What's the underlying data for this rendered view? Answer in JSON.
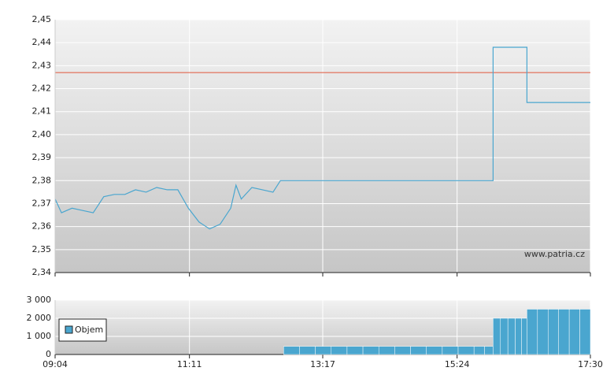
{
  "chart_data": [
    {
      "type": "line",
      "x": [
        "09:04",
        "09:10",
        "09:20",
        "09:30",
        "09:40",
        "09:50",
        "10:00",
        "10:10",
        "10:20",
        "10:30",
        "10:40",
        "10:50",
        "11:00",
        "11:10",
        "11:20",
        "11:30",
        "11:40",
        "11:50",
        "11:55",
        "12:00",
        "12:10",
        "12:20",
        "12:30",
        "12:37",
        "15:58",
        "15:58",
        "16:30",
        "16:30",
        "17:30"
      ],
      "values": [
        2.372,
        2.366,
        2.368,
        2.367,
        2.366,
        2.373,
        2.374,
        2.374,
        2.376,
        2.375,
        2.377,
        2.376,
        2.376,
        2.368,
        2.362,
        2.359,
        2.361,
        2.368,
        2.378,
        2.372,
        2.377,
        2.376,
        2.375,
        2.38,
        2.38,
        2.438,
        2.438,
        2.414,
        2.414
      ],
      "color": "#4aa6cf",
      "reference": 2.427,
      "reference_color": "#e0553a",
      "xlim": [
        "09:04",
        "17:30"
      ],
      "xticks": [
        "09:04",
        "11:11",
        "13:17",
        "15:24",
        "17:30"
      ],
      "ylim": [
        2.34,
        2.45
      ],
      "yticks": [
        {
          "value": 2.34,
          "label": "2,34"
        },
        {
          "value": 2.35,
          "label": "2,35"
        },
        {
          "value": 2.36,
          "label": "2,36"
        },
        {
          "value": 2.37,
          "label": "2,37"
        },
        {
          "value": 2.38,
          "label": "2,38"
        },
        {
          "value": 2.39,
          "label": "2,39"
        },
        {
          "value": 2.4,
          "label": "2,40"
        },
        {
          "value": 2.41,
          "label": "2,41"
        },
        {
          "value": 2.42,
          "label": "2,42"
        },
        {
          "value": 2.43,
          "label": "2,43"
        },
        {
          "value": 2.44,
          "label": "2,44"
        },
        {
          "value": 2.45,
          "label": "2,45"
        }
      ],
      "grid": true,
      "watermark": "www.patria.cz"
    },
    {
      "type": "bar",
      "x": [
        "12:40",
        "12:55",
        "13:10",
        "13:25",
        "13:40",
        "13:55",
        "14:10",
        "14:25",
        "14:40",
        "14:55",
        "15:10",
        "15:25",
        "15:40",
        "15:50",
        "15:58",
        "16:05",
        "16:12",
        "16:19",
        "16:25",
        "16:30",
        "16:40",
        "16:50",
        "17:00",
        "17:10",
        "17:20"
      ],
      "series": [
        {
          "name": "Objem",
          "color": "#4aa6cf",
          "values": [
            450,
            450,
            450,
            450,
            450,
            450,
            450,
            450,
            450,
            450,
            450,
            450,
            450,
            450,
            2000,
            2000,
            2000,
            2000,
            2000,
            2500,
            2500,
            2500,
            2500,
            2500,
            2500
          ]
        }
      ],
      "xlim": [
        "09:04",
        "17:30"
      ],
      "xticks": [
        "09:04",
        "11:11",
        "13:17",
        "15:24",
        "17:30"
      ],
      "ylim": [
        0,
        3000
      ],
      "yticks": [
        0,
        {
          "value": 1000,
          "label": "1 000"
        },
        {
          "value": 2000,
          "label": "2 000"
        },
        {
          "value": 3000,
          "label": "3 000"
        }
      ],
      "grid": true
    }
  ]
}
